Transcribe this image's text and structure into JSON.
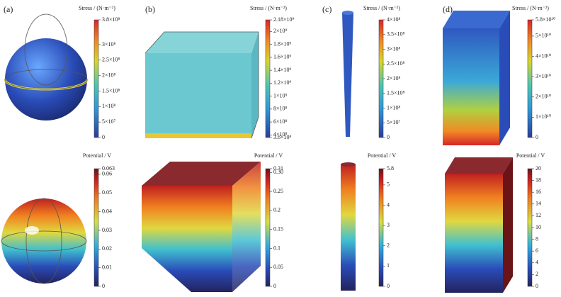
{
  "panels": [
    {
      "label": "(a)",
      "stress": {
        "title": "Stress / (N·m⁻²)",
        "range": [
          0,
          380000000
        ],
        "ticks": [
          {
            "value": 380000000,
            "label": "3.8×10⁸"
          },
          {
            "value": 300000000,
            "label": "3×10⁸"
          },
          {
            "value": 250000000,
            "label": "2.5×10⁸"
          },
          {
            "value": 200000000,
            "label": "2×10⁸"
          },
          {
            "value": 150000000,
            "label": "1.5×10⁸"
          },
          {
            "value": 100000000,
            "label": "1×10⁸"
          },
          {
            "value": 50000000,
            "label": "5×10⁷"
          },
          0
        ]
      },
      "potential": {
        "title": "Potential / V",
        "range": [
          0,
          0.063
        ],
        "ticks": [
          0.063,
          {
            "value": 0.06,
            "label": "0.06"
          },
          {
            "value": 0.05,
            "label": "0.05"
          },
          {
            "value": 0.04,
            "label": "0.04"
          },
          {
            "value": 0.03,
            "label": "0.03"
          },
          {
            "value": 0.02,
            "label": "0.02"
          },
          {
            "value": 0.01,
            "label": "0.01"
          },
          0
        ]
      }
    },
    {
      "label": "(b)",
      "stress": {
        "title": "Stress / (N·m⁻²)",
        "range": [
          360000000,
          2180000000
        ],
        "ticks": [
          {
            "value": 2180000000,
            "label": "2.18×10⁹"
          },
          {
            "value": 2000000000,
            "label": "2×10⁹"
          },
          {
            "value": 1800000000,
            "label": "1.8×10⁹"
          },
          {
            "value": 1600000000,
            "label": "1.6×10⁹"
          },
          {
            "value": 1400000000,
            "label": "1.4×10⁹"
          },
          {
            "value": 1200000000,
            "label": "1.2×10⁹"
          },
          {
            "value": 1000000000,
            "label": "1×10⁹"
          },
          {
            "value": 800000000,
            "label": "8×10⁸"
          },
          {
            "value": 600000000,
            "label": "6×10⁸"
          },
          {
            "value": 400000000,
            "label": "4×10⁸"
          },
          {
            "value": 360000000,
            "label": "3.6×10⁸"
          }
        ]
      },
      "potential": {
        "title": "Potential / V",
        "range": [
          0,
          0.31
        ],
        "ticks": [
          0.31,
          {
            "value": 0.3,
            "label": "0.30"
          },
          0.25,
          0.2,
          0.15,
          0.1,
          0.05,
          0
        ]
      }
    },
    {
      "label": "(c)",
      "stress": {
        "title": "Stress / (N·m⁻²)",
        "range": [
          0,
          400000000
        ],
        "ticks": [
          {
            "value": 400000000,
            "label": "4×10⁸"
          },
          {
            "value": 350000000,
            "label": "3.5×10⁸"
          },
          {
            "value": 300000000,
            "label": "3×10⁸"
          },
          {
            "value": 250000000,
            "label": "2.5×10⁸"
          },
          {
            "value": 200000000,
            "label": "2×10⁸"
          },
          {
            "value": 150000000,
            "label": "1.5×10⁸"
          },
          {
            "value": 100000000,
            "label": "1×10⁸"
          },
          {
            "value": 50000000,
            "label": "5×10⁷"
          },
          0
        ]
      },
      "potential": {
        "title": "Potential / V",
        "range": [
          0,
          5.8
        ],
        "ticks": [
          5.8,
          5,
          4,
          3,
          2,
          1,
          0
        ]
      }
    },
    {
      "label": "(d)",
      "stress": {
        "title": "Stress / (N·m⁻²)",
        "range": [
          0,
          58000000000
        ],
        "ticks": [
          {
            "value": 58000000000,
            "label": "5.8×10¹⁰"
          },
          {
            "value": 50000000000,
            "label": "5×10¹⁰"
          },
          {
            "value": 40000000000,
            "label": "4×10¹⁰"
          },
          {
            "value": 30000000000,
            "label": "3×10¹⁰"
          },
          {
            "value": 20000000000,
            "label": "2×10¹⁰"
          },
          {
            "value": 10000000000,
            "label": "1×10¹⁰"
          },
          0
        ]
      },
      "potential": {
        "title": "Potential / V",
        "range": [
          0,
          20
        ],
        "ticks": [
          20,
          18,
          16,
          14,
          12,
          10,
          8,
          6,
          4,
          2,
          0
        ]
      }
    }
  ]
}
